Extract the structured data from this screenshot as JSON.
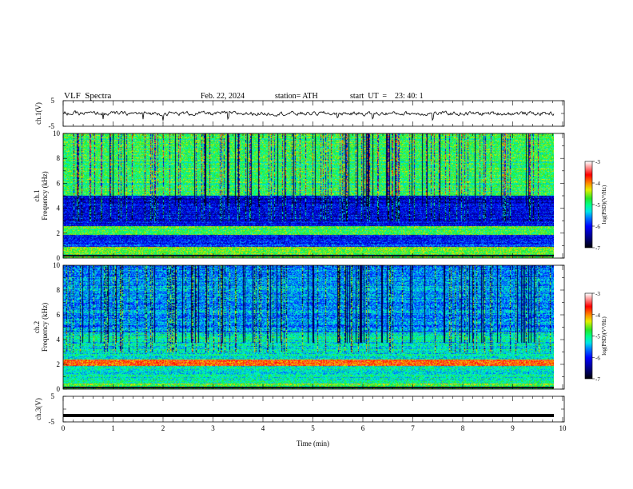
{
  "header": {
    "title": "VLF  Spectra",
    "date": "Feb. 22, 2024",
    "station": "station= ATH",
    "start": "start  UT  =    23: 40: 1"
  },
  "chart_data": [
    {
      "type": "line",
      "panel": "ch1-waveform",
      "ylabel": "ch.1(V)",
      "ylim": [
        -5,
        5
      ],
      "yticks": [
        "5",
        "-5"
      ],
      "xlim": [
        0,
        10
      ],
      "series": [
        {
          "values_note": "noisy waveform centered near 0 V, excursions to about ±1 V, spikes near 1.6, 2.0, 3.3, 5.5, 7.4 min"
        }
      ]
    },
    {
      "type": "heatmap",
      "panel": "ch1-spectrogram",
      "ylabel": "ch.1\nFrequency  (kHz)",
      "ylim": [
        0,
        10
      ],
      "yticks": [
        "0",
        "2",
        "4",
        "6",
        "8",
        "10"
      ],
      "xlim": [
        0,
        10
      ],
      "colorbar": {
        "label": "log(PSD)(V²/Hz)",
        "range": [
          -7,
          -3
        ],
        "ticks": [
          "-3",
          "-4",
          "-5",
          "-6",
          "-7"
        ]
      }
    },
    {
      "type": "heatmap",
      "panel": "ch2-spectrogram",
      "ylabel": "ch.2\nFrequency  (kHz)",
      "ylim": [
        0,
        10
      ],
      "yticks": [
        "0",
        "2",
        "4",
        "6",
        "8",
        "10"
      ],
      "xlim": [
        0,
        10
      ],
      "colorbar": {
        "label": "log(PSD)(V²/Hz)",
        "range": [
          -7,
          -3
        ],
        "ticks": [
          "-3",
          "-4",
          "-5",
          "-6",
          "-7"
        ]
      }
    },
    {
      "type": "line",
      "panel": "ch3-waveform",
      "ylabel": "ch.3(V)",
      "ylim": [
        -5,
        5
      ],
      "yticks": [
        "5",
        "-5"
      ],
      "xlim": [
        0,
        10
      ],
      "series": [
        {
          "values_note": "flat thick trace at about -2.5 V"
        }
      ]
    }
  ],
  "xaxis": {
    "label": "Time  (min)",
    "ticks": [
      "0",
      "1",
      "2",
      "3",
      "4",
      "5",
      "6",
      "7",
      "8",
      "9",
      "10"
    ],
    "range": [
      0,
      10
    ]
  },
  "colors": {
    "scale": [
      "#000000",
      "#0000a0",
      "#0000ff",
      "#0080ff",
      "#00ffff",
      "#00ff80",
      "#00ff00",
      "#ffff00",
      "#ff8000",
      "#ff0000",
      "#ffffff"
    ]
  }
}
